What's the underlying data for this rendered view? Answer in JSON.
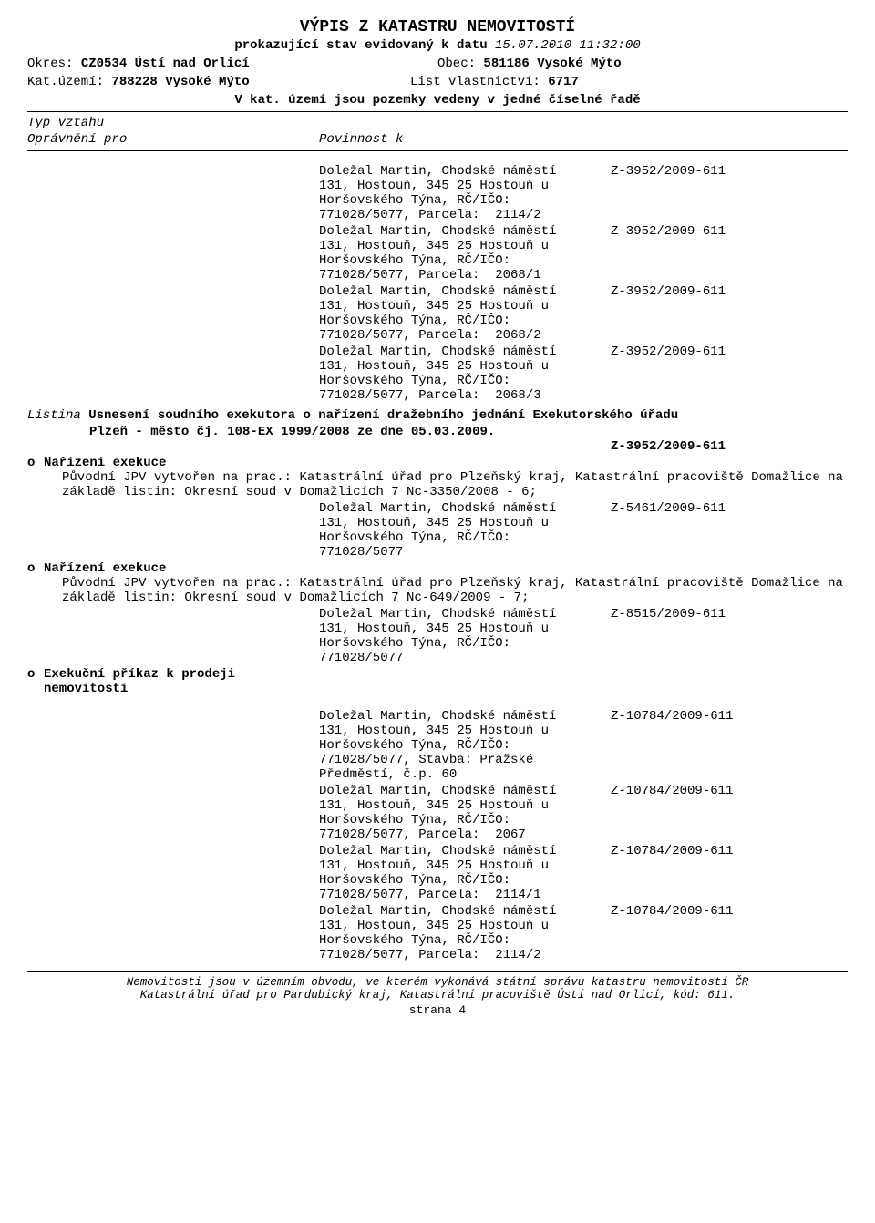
{
  "title": "VÝPIS Z KATASTRU NEMOVITOSTÍ",
  "subtitle_bold": "prokazující stav evidovaný k datu",
  "subtitle_date": "15.07.2010 11:32:00",
  "okres_label": "Okres:",
  "okres_value": "CZ0534 Ústí nad Orlicí",
  "obec_label": "Obec:",
  "obec_value": "581186 Vysoké Mýto",
  "katuz_label": "Kat.území:",
  "katuz_value": "788228 Vysoké Mýto",
  "lv_label": "List vlastnictví:",
  "lv_value": "6717",
  "note_line": "V kat. území jsou pozemky vedeny v jedné číselné řadě",
  "typ_vztahu": "Typ vztahu",
  "opravneni_pro": "Oprávnění pro",
  "povinnost_k": "Povinnost k",
  "entries1": [
    {
      "text": "Doležal Martin, Chodské náměstí\n131, Hostouň, 345 25 Hostouň u\nHoršovského Týna, RČ/IČO:\n771028/5077, Parcela:  2114/2",
      "ref": "Z-3952/2009-611"
    },
    {
      "text": "Doležal Martin, Chodské náměstí\n131, Hostouň, 345 25 Hostouň u\nHoršovského Týna, RČ/IČO:\n771028/5077, Parcela:  2068/1",
      "ref": "Z-3952/2009-611"
    },
    {
      "text": "Doležal Martin, Chodské náměstí\n131, Hostouň, 345 25 Hostouň u\nHoršovského Týna, RČ/IČO:\n771028/5077, Parcela:  2068/2",
      "ref": "Z-3952/2009-611"
    },
    {
      "text": "Doležal Martin, Chodské náměstí\n131, Hostouň, 345 25 Hostouň u\nHoršovského Týna, RČ/IČO:\n771028/5077, Parcela:  2068/3",
      "ref": "Z-3952/2009-611"
    }
  ],
  "listina_prefix": "Listina",
  "listina_text1": "Usnesení soudního exekutora o nařízení dražebního jednání Exekutorského úřadu",
  "listina_text2": "Plzeň - město čj. 108-EX 1999/2008 ze dne 05.03.2009.",
  "listina_ref": "Z-3952/2009-611",
  "bullet1_title": "Nařízení exekuce",
  "bullet1_para": "Původní JPV vytvořen na prac.: Katastrální úřad pro Plzeňský kraj, Katastrální pracoviště Domažlice na základě listin: Okresní soud v Domažlicích 7 Nc-3350/2008 - 6;",
  "entries2": [
    {
      "text": "Doležal Martin, Chodské náměstí\n131, Hostouň, 345 25 Hostouň u\nHoršovského Týna, RČ/IČO:\n771028/5077",
      "ref": "Z-5461/2009-611"
    }
  ],
  "bullet2_title": "Nařízení exekuce",
  "bullet2_para": "Původní JPV vytvořen na prac.: Katastrální úřad pro Plzeňský kraj, Katastrální pracoviště Domažlice na základě listin: Okresní soud v Domažlicích 7 Nc-649/2009 - 7;",
  "entries3": [
    {
      "text": "Doležal Martin, Chodské náměstí\n131, Hostouň, 345 25 Hostouň u\nHoršovského Týna, RČ/IČO:\n771028/5077",
      "ref": "Z-8515/2009-611"
    }
  ],
  "bullet3_title": "Exekuční příkaz k prodeji",
  "bullet3_title2": "nemovitosti",
  "entries4": [
    {
      "text": "Doležal Martin, Chodské náměstí\n131, Hostouň, 345 25 Hostouň u\nHoršovského Týna, RČ/IČO:\n771028/5077, Stavba: Pražské\nPředměstí, č.p. 60",
      "ref": "Z-10784/2009-611"
    },
    {
      "text": "Doležal Martin, Chodské náměstí\n131, Hostouň, 345 25 Hostouň u\nHoršovského Týna, RČ/IČO:\n771028/5077, Parcela:  2067",
      "ref": "Z-10784/2009-611"
    },
    {
      "text": "Doležal Martin, Chodské náměstí\n131, Hostouň, 345 25 Hostouň u\nHoršovského Týna, RČ/IČO:\n771028/5077, Parcela:  2114/1",
      "ref": "Z-10784/2009-611"
    },
    {
      "text": "Doležal Martin, Chodské náměstí\n131, Hostouň, 345 25 Hostouň u\nHoršovského Týna, RČ/IČO:\n771028/5077, Parcela:  2114/2",
      "ref": "Z-10784/2009-611"
    }
  ],
  "footer1": "Nemovitosti jsou v územním obvodu, ve kterém vykonává státní správu katastru nemovitostí ČR",
  "footer2": "Katastrální úřad pro Pardubický kraj, Katastrální pracoviště Ústí nad Orlicí, kód: 611.",
  "page": "strana 4"
}
